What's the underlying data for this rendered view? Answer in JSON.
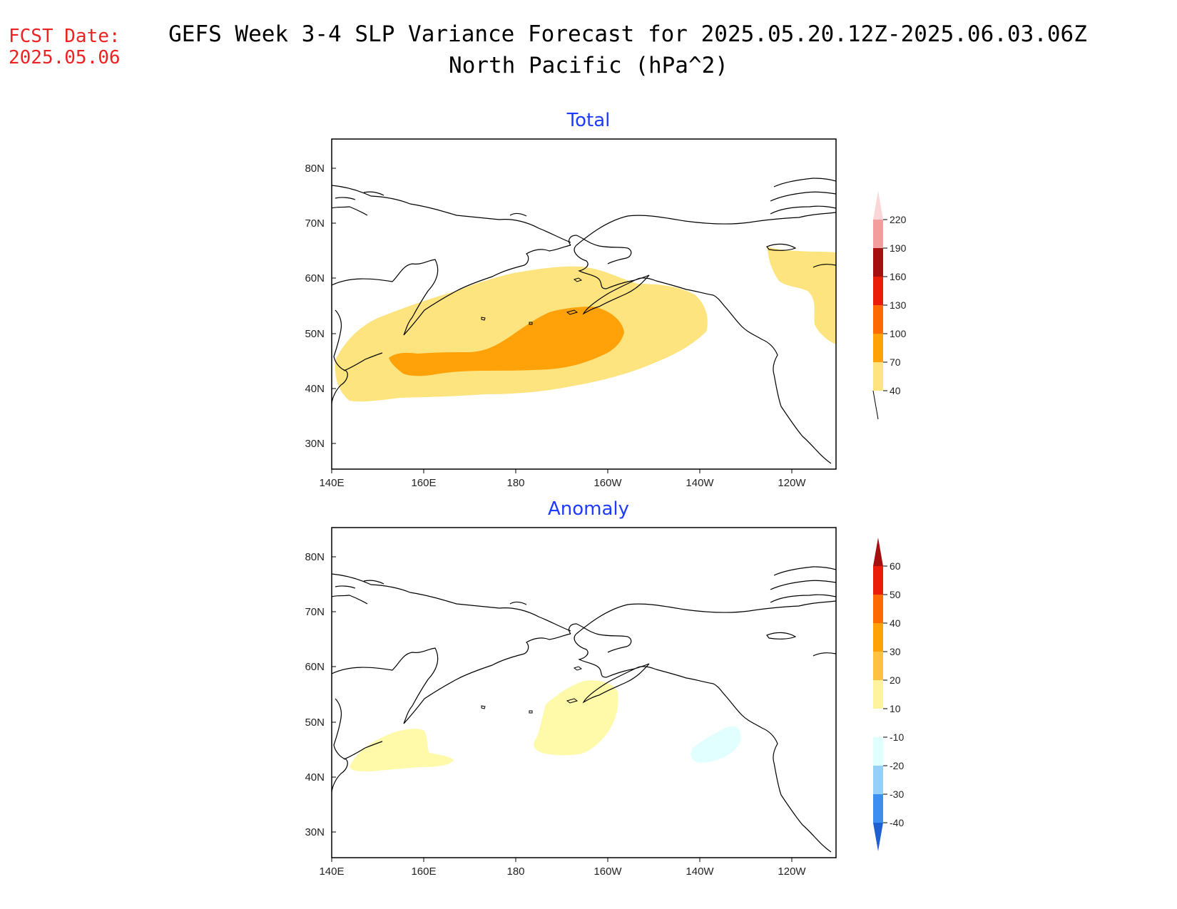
{
  "header": {
    "fcst_label": "FCST Date:",
    "fcst_date": "2025.05.06",
    "title_line1": "GEFS Week 3-4 SLP Variance Forecast for 2025.05.20.12Z-2025.06.03.06Z",
    "title_line2": "North Pacific (hPa^2)"
  },
  "axes": {
    "lat_labels": [
      "80N",
      "70N",
      "60N",
      "50N",
      "40N",
      "30N"
    ],
    "lon_labels": [
      "140E",
      "160E",
      "180",
      "160W",
      "140W",
      "120W"
    ]
  },
  "panels": [
    {
      "title": "Total",
      "colorbar": {
        "levels": [
          "40",
          "70",
          "100",
          "130",
          "160",
          "190",
          "220"
        ],
        "colors": [
          "#fde47e",
          "#ffa20a",
          "#ff6a00",
          "#e81e0a",
          "#a60f0f",
          "#f39e9e",
          "#fbd6d6"
        ]
      }
    },
    {
      "title": "Anomaly",
      "colorbar": {
        "levels": [
          "60",
          "50",
          "40",
          "30",
          "20",
          "10",
          "-10",
          "-20",
          "-30",
          "-40"
        ],
        "colors": [
          "#a60f0f",
          "#e81e0a",
          "#ff6a00",
          "#ffa20a",
          "#ffc240",
          "#fff3a0",
          "#ffffff",
          "#e0ffff",
          "#96d0f8",
          "#3c8ff0",
          "#1e60d0"
        ]
      }
    }
  ],
  "colors": {
    "fcst": "#ee2222",
    "panel_title": "#1e3cff",
    "yellow": "#fde47e",
    "orange": "#ffa20a",
    "light_yellow": "#fff9aa",
    "light_cyan": "#e2ffff"
  }
}
